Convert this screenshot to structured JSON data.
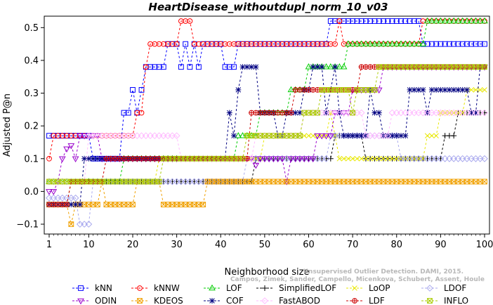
{
  "chart_data": {
    "type": "line",
    "title": "HeartDisease_withoutdupl_norm_10_v03",
    "xlabel": "Neighborhood size",
    "ylabel": "Adjusted P@n",
    "xlim": [
      1,
      100
    ],
    "ylim": [
      -0.13,
      0.535
    ],
    "xticks": [
      1,
      10,
      20,
      30,
      40,
      50,
      60,
      70,
      80,
      90,
      100
    ],
    "yticks": [
      -0.1,
      0.0,
      0.1,
      0.2,
      0.3,
      0.4,
      0.5
    ],
    "ytick_labels": [
      "−0.1",
      "0.0",
      "0.1",
      "0.2",
      "0.3",
      "0.4",
      "0.5"
    ],
    "grid": false,
    "legend_position": "bottom",
    "watermark": [
      "Campos, Zimek, Sander, Campello, Micenkova, Schubert, Assent, Houle",
      "Unsupervised Outlier Detection. DAMI, 2015."
    ],
    "series": [
      {
        "name": "kNN",
        "color": "#0000ff",
        "marker": "square",
        "points": [
          [
            1,
            0.17
          ],
          [
            10,
            0.17
          ],
          [
            11,
            0.1
          ],
          [
            17,
            0.1
          ],
          [
            18,
            0.24
          ],
          [
            19,
            0.24
          ],
          [
            20,
            0.31
          ],
          [
            21,
            0.24
          ],
          [
            22,
            0.31
          ],
          [
            23,
            0.38
          ],
          [
            27,
            0.38
          ],
          [
            28,
            0.45
          ],
          [
            30,
            0.45
          ],
          [
            31,
            0.38
          ],
          [
            32,
            0.45
          ],
          [
            33,
            0.38
          ],
          [
            34,
            0.45
          ],
          [
            35,
            0.38
          ],
          [
            36,
            0.45
          ],
          [
            40,
            0.45
          ],
          [
            41,
            0.38
          ],
          [
            43,
            0.38
          ],
          [
            44,
            0.45
          ],
          [
            64,
            0.45
          ],
          [
            65,
            0.52
          ],
          [
            85,
            0.52
          ],
          [
            86,
            0.45
          ],
          [
            100,
            0.45
          ]
        ]
      },
      {
        "name": "kNNW",
        "color": "#ff0000",
        "marker": "circle",
        "points": [
          [
            1,
            0.1
          ],
          [
            2,
            0.17
          ],
          [
            20,
            0.17
          ],
          [
            21,
            0.24
          ],
          [
            22,
            0.24
          ],
          [
            23,
            0.38
          ],
          [
            24,
            0.45
          ],
          [
            30,
            0.45
          ],
          [
            31,
            0.52
          ],
          [
            33,
            0.52
          ],
          [
            34,
            0.45
          ],
          [
            66,
            0.45
          ],
          [
            67,
            0.52
          ],
          [
            68,
            0.45
          ],
          [
            85,
            0.45
          ],
          [
            86,
            0.52
          ],
          [
            100,
            0.52
          ]
        ]
      },
      {
        "name": "LOF",
        "color": "#00cc00",
        "marker": "triangle",
        "points": [
          [
            1,
            0.03
          ],
          [
            17,
            0.03
          ],
          [
            18,
            0.1
          ],
          [
            43,
            0.1
          ],
          [
            44,
            0.17
          ],
          [
            48,
            0.17
          ],
          [
            49,
            0.24
          ],
          [
            55,
            0.24
          ],
          [
            56,
            0.31
          ],
          [
            59,
            0.31
          ],
          [
            60,
            0.38
          ],
          [
            68,
            0.38
          ],
          [
            69,
            0.45
          ],
          [
            86,
            0.45
          ],
          [
            87,
            0.52
          ],
          [
            100,
            0.52
          ]
        ]
      },
      {
        "name": "SimplifiedLOF",
        "color": "#000000",
        "marker": "plus",
        "points": [
          [
            1,
            -0.04
          ],
          [
            5,
            -0.04
          ],
          [
            6,
            0.03
          ],
          [
            47,
            0.03
          ],
          [
            48,
            0.1
          ],
          [
            65,
            0.1
          ],
          [
            66,
            0.17
          ],
          [
            72,
            0.17
          ],
          [
            73,
            0.1
          ],
          [
            90,
            0.1
          ],
          [
            91,
            0.17
          ],
          [
            93,
            0.17
          ],
          [
            94,
            0.24
          ],
          [
            100,
            0.24
          ]
        ]
      },
      {
        "name": "LoOP",
        "color": "#e8e800",
        "marker": "cross",
        "points": [
          [
            1,
            -0.04
          ],
          [
            5,
            -0.04
          ],
          [
            6,
            0.03
          ],
          [
            25,
            0.03
          ],
          [
            26,
            0.1
          ],
          [
            49,
            0.1
          ],
          [
            50,
            0.17
          ],
          [
            64,
            0.17
          ],
          [
            65,
            0.24
          ],
          [
            66,
            0.17
          ],
          [
            67,
            0.1
          ],
          [
            86,
            0.1
          ],
          [
            87,
            0.17
          ],
          [
            89,
            0.17
          ],
          [
            90,
            0.24
          ],
          [
            95,
            0.24
          ],
          [
            96,
            0.31
          ],
          [
            100,
            0.31
          ]
        ]
      },
      {
        "name": "LDOF",
        "color": "#aaaaee",
        "marker": "diamond",
        "points": [
          [
            1,
            -0.02
          ],
          [
            7,
            -0.02
          ],
          [
            8,
            -0.1
          ],
          [
            10,
            -0.1
          ],
          [
            11,
            0.03
          ],
          [
            45,
            0.03
          ],
          [
            46,
            0.1
          ],
          [
            64,
            0.1
          ],
          [
            65,
            0.17
          ],
          [
            80,
            0.17
          ],
          [
            81,
            0.1
          ],
          [
            100,
            0.1
          ]
        ]
      },
      {
        "name": "ODIN",
        "color": "#9900cc",
        "marker": "triangle-down",
        "points": [
          [
            1,
            0.0
          ],
          [
            3,
            0.03
          ],
          [
            4,
            0.1
          ],
          [
            5,
            0.13
          ],
          [
            6,
            0.14
          ],
          [
            7,
            0.1
          ],
          [
            8,
            0.17
          ],
          [
            12,
            0.17
          ],
          [
            13,
            0.1
          ],
          [
            20,
            0.1
          ],
          [
            21,
            0.1
          ],
          [
            47,
            0.1
          ],
          [
            48,
            0.08
          ],
          [
            49,
            0.1
          ],
          [
            54,
            0.1
          ],
          [
            55,
            0.03
          ],
          [
            56,
            0.1
          ],
          [
            60,
            0.1
          ],
          [
            62,
            0.17
          ],
          [
            66,
            0.24
          ],
          [
            70,
            0.31
          ],
          [
            76,
            0.31
          ],
          [
            77,
            0.38
          ],
          [
            100,
            0.38
          ]
        ]
      },
      {
        "name": "KDEOS",
        "color": "#f0a000",
        "marker": "square-x",
        "points": [
          [
            1,
            -0.04
          ],
          [
            5,
            -0.04
          ],
          [
            6,
            -0.1
          ],
          [
            7,
            -0.04
          ],
          [
            12,
            -0.04
          ],
          [
            13,
            0.03
          ],
          [
            14,
            -0.04
          ],
          [
            20,
            -0.04
          ],
          [
            21,
            0.03
          ],
          [
            26,
            0.03
          ],
          [
            27,
            -0.04
          ],
          [
            36,
            -0.04
          ],
          [
            37,
            0.03
          ],
          [
            56,
            0.03
          ],
          [
            57,
            0.03
          ],
          [
            100,
            0.03
          ]
        ]
      },
      {
        "name": "COF",
        "color": "#000080",
        "marker": "asterisk",
        "points": [
          [
            1,
            -0.04
          ],
          [
            8,
            -0.04
          ],
          [
            9,
            0.1
          ],
          [
            41,
            0.1
          ],
          [
            42,
            0.24
          ],
          [
            43,
            0.17
          ],
          [
            44,
            0.31
          ],
          [
            45,
            0.38
          ],
          [
            48,
            0.38
          ],
          [
            49,
            0.24
          ],
          [
            52,
            0.24
          ],
          [
            53,
            0.17
          ],
          [
            55,
            0.24
          ],
          [
            58,
            0.24
          ],
          [
            59,
            0.31
          ],
          [
            60,
            0.31
          ],
          [
            61,
            0.38
          ],
          [
            63,
            0.38
          ],
          [
            64,
            0.24
          ],
          [
            65,
            0.31
          ],
          [
            66,
            0.38
          ],
          [
            67,
            0.24
          ],
          [
            68,
            0.17
          ],
          [
            73,
            0.17
          ],
          [
            74,
            0.31
          ],
          [
            75,
            0.24
          ],
          [
            77,
            0.17
          ],
          [
            82,
            0.17
          ],
          [
            83,
            0.31
          ],
          [
            86,
            0.31
          ],
          [
            87,
            0.24
          ],
          [
            88,
            0.31
          ],
          [
            96,
            0.31
          ],
          [
            97,
            0.24
          ],
          [
            99,
            0.38
          ],
          [
            100,
            0.38
          ]
        ]
      },
      {
        "name": "FastABOD",
        "color": "#ffbbff",
        "marker": "diamond",
        "points": [
          [
            1,
            0.03
          ],
          [
            9,
            0.03
          ],
          [
            10,
            0.17
          ],
          [
            30,
            0.17
          ],
          [
            31,
            0.1
          ],
          [
            47,
            0.1
          ],
          [
            48,
            0.17
          ],
          [
            58,
            0.17
          ],
          [
            59,
            0.24
          ],
          [
            72,
            0.24
          ],
          [
            73,
            0.17
          ],
          [
            78,
            0.17
          ],
          [
            79,
            0.24
          ],
          [
            92,
            0.24
          ],
          [
            93,
            0.24
          ],
          [
            100,
            0.24
          ]
        ]
      },
      {
        "name": "LDF",
        "color": "#cc0000",
        "marker": "circle-plus",
        "points": [
          [
            1,
            -0.04
          ],
          [
            5,
            -0.04
          ],
          [
            6,
            0.03
          ],
          [
            13,
            0.03
          ],
          [
            14,
            0.1
          ],
          [
            46,
            0.1
          ],
          [
            47,
            0.24
          ],
          [
            56,
            0.24
          ],
          [
            57,
            0.31
          ],
          [
            71,
            0.31
          ],
          [
            72,
            0.38
          ],
          [
            100,
            0.38
          ]
        ]
      },
      {
        "name": "INFLO",
        "color": "#aacc00",
        "marker": "star",
        "points": [
          [
            1,
            0.03
          ],
          [
            26,
            0.03
          ],
          [
            27,
            0.1
          ],
          [
            45,
            0.1
          ],
          [
            46,
            0.17
          ],
          [
            58,
            0.17
          ],
          [
            59,
            0.24
          ],
          [
            62,
            0.24
          ],
          [
            63,
            0.31
          ],
          [
            69,
            0.31
          ],
          [
            70,
            0.24
          ],
          [
            71,
            0.31
          ],
          [
            75,
            0.31
          ],
          [
            76,
            0.38
          ],
          [
            100,
            0.38
          ]
        ]
      }
    ]
  }
}
